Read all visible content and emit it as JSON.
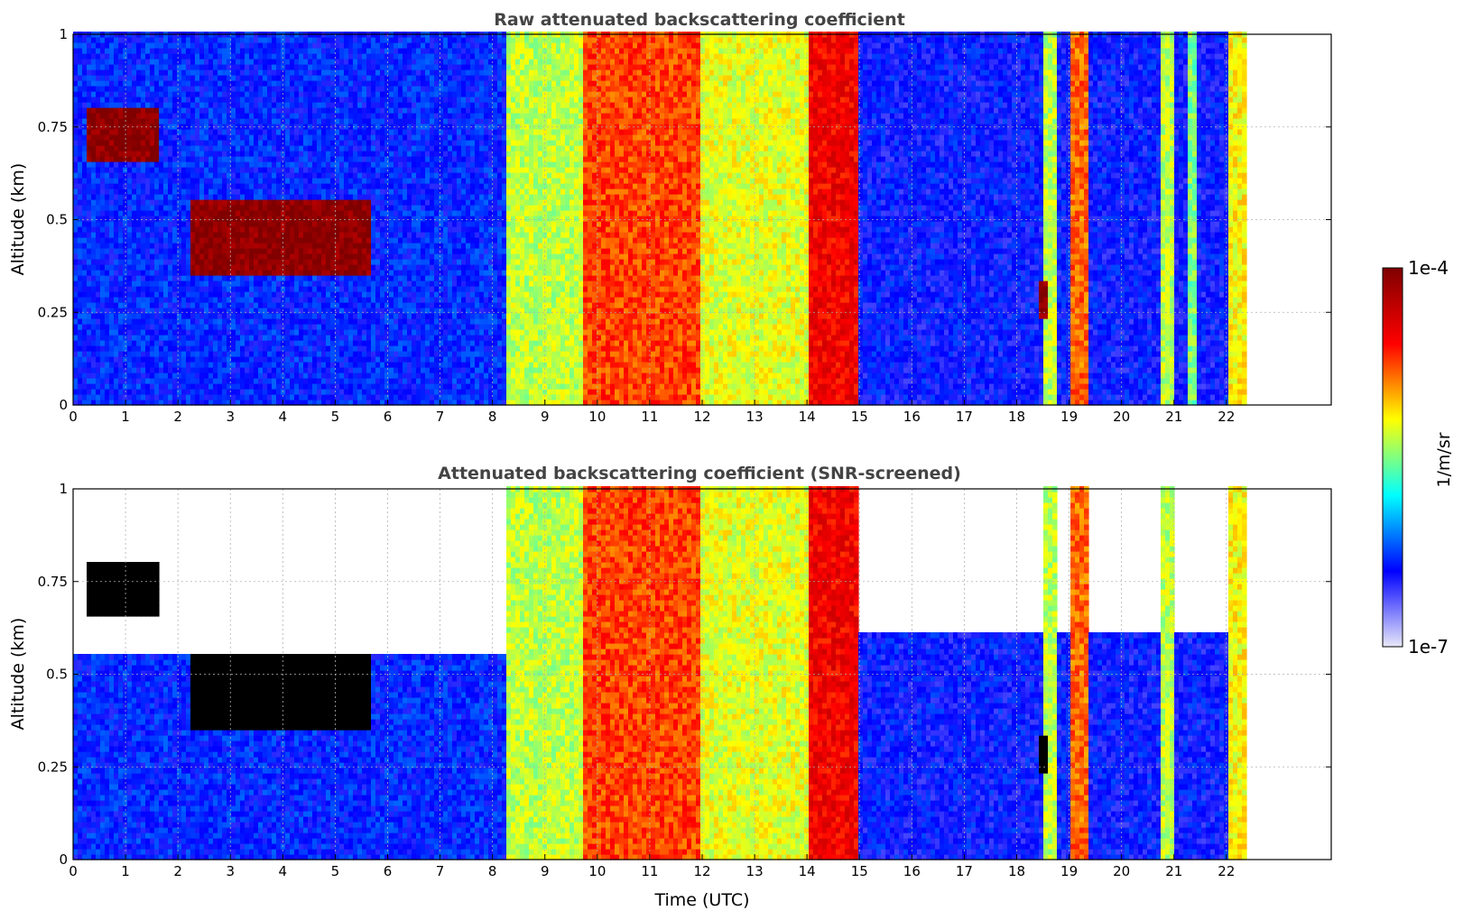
{
  "chart_data": [
    {
      "type": "heatmap",
      "title": "Raw attenuated backscattering coefficient",
      "xlabel": "",
      "ylabel": "Altitude (km)",
      "xlim": [
        0,
        24
      ],
      "ylim": [
        0,
        1
      ],
      "xticks": [
        "0",
        "1",
        "2",
        "3",
        "4",
        "5",
        "6",
        "7",
        "8",
        "9",
        "10",
        "11",
        "12",
        "13",
        "14",
        "15",
        "16",
        "17",
        "18",
        "19",
        "20",
        "21",
        "22"
      ],
      "yticks": [
        "0",
        "0.25",
        "0.5",
        "0.75",
        "1"
      ],
      "grid": true,
      "data_extent_hours": [
        0,
        22.3
      ],
      "screened": false,
      "regions": [
        {
          "t0": 0.0,
          "t1": 8.25,
          "h0": 0.0,
          "h1": 1.0,
          "level": 0.22
        },
        {
          "t0": 8.25,
          "t1": 9.65,
          "h0": 0.0,
          "h1": 1.0,
          "level": 0.55
        },
        {
          "t0": 9.65,
          "t1": 11.9,
          "h0": 0.0,
          "h1": 1.0,
          "level": 0.75
        },
        {
          "t0": 11.9,
          "t1": 14.0,
          "h0": 0.0,
          "h1": 1.0,
          "level": 0.58
        },
        {
          "t0": 14.0,
          "t1": 14.95,
          "h0": 0.0,
          "h1": 1.0,
          "level": 0.82
        },
        {
          "t0": 14.95,
          "t1": 22.3,
          "h0": 0.0,
          "h1": 1.0,
          "level": 0.2
        },
        {
          "t0": 18.45,
          "t1": 18.7,
          "h0": 0.0,
          "h1": 1.0,
          "level": 0.55
        },
        {
          "t0": 19.0,
          "t1": 19.35,
          "h0": 0.0,
          "h1": 1.0,
          "level": 0.72
        },
        {
          "t0": 20.7,
          "t1": 21.0,
          "h0": 0.0,
          "h1": 1.0,
          "level": 0.55
        },
        {
          "t0": 21.25,
          "t1": 21.4,
          "h0": 0.0,
          "h1": 1.0,
          "level": 0.5
        },
        {
          "t0": 22.0,
          "t1": 22.3,
          "h0": 0.0,
          "h1": 1.0,
          "level": 0.6
        },
        {
          "t0": 0.2,
          "t1": 1.6,
          "h0": 0.65,
          "h1": 0.8,
          "level": 0.98
        },
        {
          "t0": 2.2,
          "t1": 5.6,
          "h0": 0.35,
          "h1": 0.55,
          "level": 0.98
        },
        {
          "t0": 18.4,
          "t1": 18.55,
          "h0": 0.22,
          "h1": 0.33,
          "level": 0.98
        }
      ]
    },
    {
      "type": "heatmap",
      "title": "Attenuated backscattering coefficient (SNR-screened)",
      "xlabel": "Time (UTC)",
      "ylabel": "Altitude (km)",
      "xlim": [
        0,
        24
      ],
      "ylim": [
        0,
        1
      ],
      "xticks": [
        "0",
        "1",
        "2",
        "3",
        "4",
        "5",
        "6",
        "7",
        "8",
        "9",
        "10",
        "11",
        "12",
        "13",
        "14",
        "15",
        "16",
        "17",
        "18",
        "19",
        "20",
        "21",
        "22"
      ],
      "yticks": [
        "0",
        "0.25",
        "0.5",
        "0.75",
        "1"
      ],
      "grid": true,
      "data_extent_hours": [
        0,
        22.3
      ],
      "screened": true,
      "regions": [
        {
          "t0": 0.0,
          "t1": 8.25,
          "h0": 0.0,
          "h1": 0.55,
          "level": 0.22
        },
        {
          "t0": 8.25,
          "t1": 9.65,
          "h0": 0.0,
          "h1": 1.0,
          "level": 0.55
        },
        {
          "t0": 9.65,
          "t1": 11.9,
          "h0": 0.0,
          "h1": 1.0,
          "level": 0.75
        },
        {
          "t0": 11.9,
          "t1": 14.0,
          "h0": 0.0,
          "h1": 1.0,
          "level": 0.58
        },
        {
          "t0": 14.0,
          "t1": 14.95,
          "h0": 0.0,
          "h1": 1.0,
          "level": 0.82
        },
        {
          "t0": 14.95,
          "t1": 22.3,
          "h0": 0.0,
          "h1": 0.6,
          "level": 0.2
        },
        {
          "t0": 18.45,
          "t1": 18.7,
          "h0": 0.0,
          "h1": 1.0,
          "level": 0.55
        },
        {
          "t0": 19.0,
          "t1": 19.35,
          "h0": 0.0,
          "h1": 1.0,
          "level": 0.72
        },
        {
          "t0": 20.7,
          "t1": 21.0,
          "h0": 0.0,
          "h1": 1.0,
          "level": 0.55
        },
        {
          "t0": 22.0,
          "t1": 22.3,
          "h0": 0.0,
          "h1": 1.0,
          "level": 0.6
        },
        {
          "t0": 0.2,
          "t1": 1.6,
          "h0": 0.65,
          "h1": 0.8,
          "level": -1
        },
        {
          "t0": 2.2,
          "t1": 5.6,
          "h0": 0.35,
          "h1": 0.55,
          "level": -1
        },
        {
          "t0": 18.4,
          "t1": 18.55,
          "h0": 0.22,
          "h1": 0.33,
          "level": -1
        }
      ]
    }
  ],
  "colorbar": {
    "label": "1/m/sr",
    "max_label": "1e-4",
    "min_label": "1e-7",
    "stops": [
      "#e8e8fa",
      "#0000ff",
      "#00ffff",
      "#ffff00",
      "#ff0000",
      "#800000"
    ]
  }
}
